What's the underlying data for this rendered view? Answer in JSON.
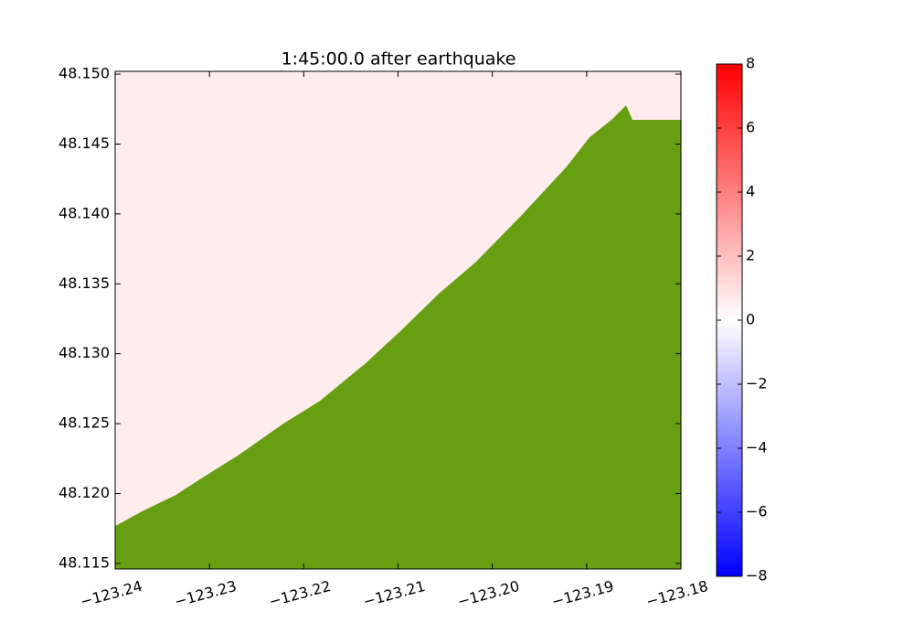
{
  "chart_data": {
    "type": "map",
    "title": "1:45:00.0 after earthquake",
    "xlim": [
      -123.24,
      -123.18
    ],
    "ylim": [
      48.1146,
      48.1502
    ],
    "xticks": [
      {
        "value": -123.24,
        "label": "−123.24"
      },
      {
        "value": -123.23,
        "label": "−123.23"
      },
      {
        "value": -123.22,
        "label": "−123.22"
      },
      {
        "value": -123.21,
        "label": "−123.21"
      },
      {
        "value": -123.2,
        "label": "−123.20"
      },
      {
        "value": -123.19,
        "label": "−123.19"
      },
      {
        "value": -123.18,
        "label": "−123.18"
      }
    ],
    "yticks": [
      {
        "value": 48.115,
        "label": "48.115"
      },
      {
        "value": 48.12,
        "label": "48.120"
      },
      48.125,
      {
        "value": 48.13,
        "label": "48.130"
      },
      48.135,
      {
        "value": 48.14,
        "label": "48.140"
      },
      48.145,
      {
        "value": 48.15,
        "label": "48.150"
      }
    ],
    "colormap": "bwr",
    "clim": [
      -8,
      8
    ],
    "cticks": [
      {
        "value": -8,
        "label": "−8"
      },
      {
        "value": -6,
        "label": "−6"
      },
      {
        "value": -4,
        "label": "−4"
      },
      {
        "value": -2,
        "label": "−2"
      },
      0,
      2,
      4,
      6,
      8
    ],
    "water_level": 0.6,
    "land_color": "#66a012",
    "land": {
      "x": [
        -123.24,
        -123.237,
        -123.2336,
        -123.23089,
        -123.22701,
        -123.22216,
        -123.21829,
        -123.21344,
        -123.20956,
        -123.20569,
        -123.20181,
        -123.19696,
        -123.19212,
        -123.18969,
        -123.18727,
        -123.18582,
        -123.18514,
        -123.18,
        -123.18,
        -123.24
      ],
      "y": [
        48.11767,
        48.11878,
        48.11989,
        48.12107,
        48.12271,
        48.125,
        48.12663,
        48.12932,
        48.13174,
        48.13429,
        48.13652,
        48.13986,
        48.14339,
        48.14548,
        48.14679,
        48.14777,
        48.14673,
        48.14673,
        48.11459,
        48.11459
      ]
    }
  }
}
